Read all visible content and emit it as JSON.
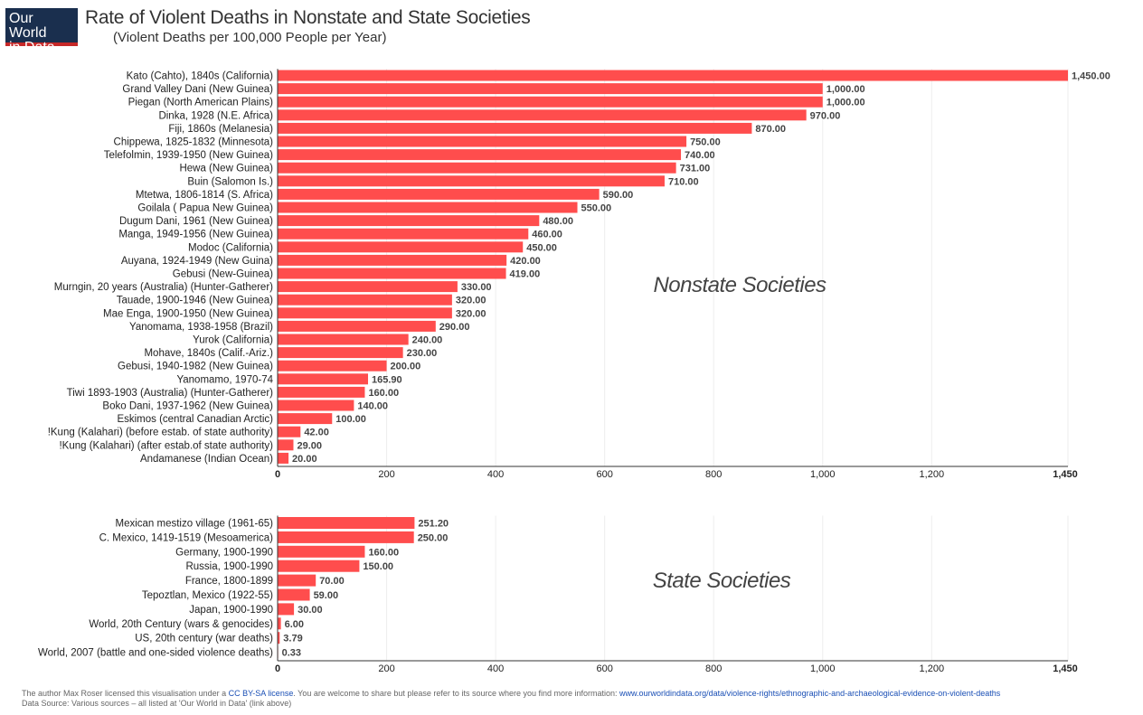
{
  "header": {
    "logo_line1": "Our World",
    "logo_line2": "in Data",
    "title": "Rate of Violent Deaths in Nonstate and State Societies",
    "subtitle": "(Violent Deaths per 100,000 People per Year)"
  },
  "footer": {
    "line1_prefix": "The author Max Roser licensed this visualisation under a ",
    "license_link": "CC BY-SA license",
    "line1_middle": ". You are welcome to share but please refer to its source where you find more information: ",
    "source_link": "www.ourworldindata.org/data/violence-rights/ethnographic-and-archaeological-evidence-on-violent-deaths",
    "line2": "Data Source: Various sources – all listed at 'Our World in Data' (link above)"
  },
  "colors": {
    "bar": "#ff4d4d",
    "grid": "#eeeeee",
    "axis": "#333333"
  },
  "chart_data": [
    {
      "type": "bar",
      "orientation": "horizontal",
      "annotation": "Nonstate Societies",
      "xlim": [
        0,
        1450
      ],
      "xticks": [
        0,
        200,
        400,
        600,
        800,
        1000,
        1200,
        1450
      ],
      "xtick_labels": [
        "0",
        "200",
        "400",
        "600",
        "800",
        "1,000",
        "1,200",
        "1,450"
      ],
      "categories": [
        "Kato (Cahto), 1840s (California)",
        "Grand Valley Dani (New Guinea)",
        "Piegan (North American Plains)",
        "Dinka, 1928 (N.E. Africa)",
        "Fiji, 1860s (Melanesia)",
        "Chippewa, 1825-1832 (Minnesota)",
        "Telefolmin, 1939-1950 (New Guinea)",
        "Hewa (New Guinea)",
        "Buin (Salomon Is.)",
        "Mtetwa, 1806-1814 (S. Africa)",
        "Goilala ( Papua New Guinea)",
        "Dugum Dani, 1961 (New Guinea)",
        "Manga, 1949-1956 (New Guinea)",
        "Modoc (California)",
        "Auyana, 1924-1949 (New Guina)",
        "Gebusi (New-Guinea)",
        "Murngin, 20 years (Australia) (Hunter-Gatherer)",
        "Tauade, 1900-1946 (New Guinea)",
        "Mae Enga, 1900-1950 (New Guinea)",
        "Yanomama, 1938-1958 (Brazil)",
        "Yurok (California)",
        "Mohave, 1840s (Calif.-Ariz.)",
        "Gebusi, 1940-1982 (New Guinea)",
        "Yanomamo, 1970-74",
        "Tiwi 1893-1903 (Australia) (Hunter-Gatherer)",
        "Boko Dani, 1937-1962 (New Guinea)",
        "Eskimos (central Canadian Arctic)",
        "!Kung (Kalahari) (before estab. of state authority)",
        "!Kung (Kalahari) (after estab.of state authority)",
        "Andamanese (Indian Ocean)"
      ],
      "values": [
        1450,
        1000,
        1000,
        970,
        870,
        750,
        740,
        731,
        710,
        590,
        550,
        480,
        460,
        450,
        420,
        419,
        330,
        320,
        320,
        290,
        240,
        230,
        200,
        165.9,
        160,
        140,
        100,
        42,
        29,
        20
      ],
      "value_labels": [
        "1,450.00",
        "1,000.00",
        "1,000.00",
        "970.00",
        "870.00",
        "750.00",
        "740.00",
        "731.00",
        "710.00",
        "590.00",
        "550.00",
        "480.00",
        "460.00",
        "450.00",
        "420.00",
        "419.00",
        "330.00",
        "320.00",
        "320.00",
        "290.00",
        "240.00",
        "230.00",
        "200.00",
        "165.90",
        "160.00",
        "140.00",
        "100.00",
        "42.00",
        "29.00",
        "20.00"
      ]
    },
    {
      "type": "bar",
      "orientation": "horizontal",
      "annotation": "State Societies",
      "xlim": [
        0,
        1450
      ],
      "xticks": [
        0,
        200,
        400,
        600,
        800,
        1000,
        1200,
        1450
      ],
      "xtick_labels": [
        "0",
        "200",
        "400",
        "600",
        "800",
        "1,000",
        "1,200",
        "1,450"
      ],
      "categories": [
        "Mexican mestizo village (1961-65)",
        "C. Mexico, 1419-1519 (Mesoamerica)",
        "Germany, 1900-1990",
        "Russia, 1900-1990",
        "France, 1800-1899",
        "Tepoztlan, Mexico (1922-55)",
        "Japan, 1900-1990",
        "World, 20th Century (wars & genocides)",
        "US, 20th century (war deaths)",
        "World, 2007 (battle and one-sided violence deaths)"
      ],
      "values": [
        251.2,
        250,
        160,
        150,
        70,
        59,
        30,
        6,
        3.79,
        0.33
      ],
      "value_labels": [
        "251.20",
        "250.00",
        "160.00",
        "150.00",
        "70.00",
        "59.00",
        "30.00",
        "6.00",
        "3.79",
        "0.33"
      ]
    }
  ]
}
